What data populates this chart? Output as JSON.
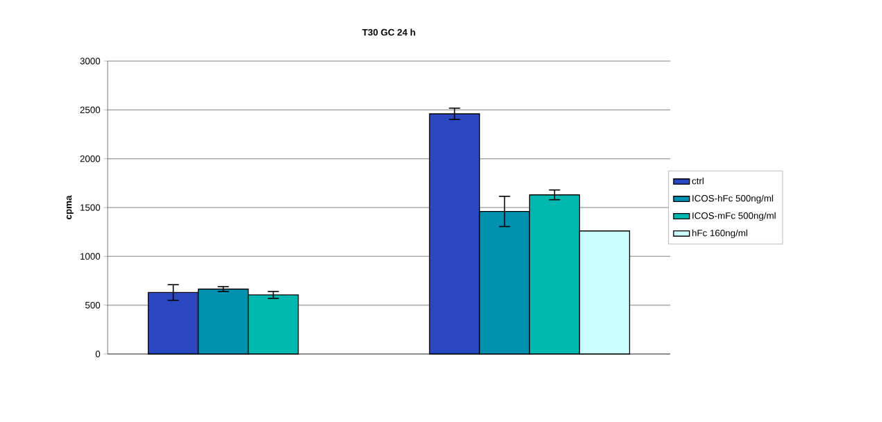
{
  "chart_data": {
    "type": "bar",
    "title": "T30 GC 24 h",
    "ylabel": "cpma",
    "categories": [
      null,
      null
    ],
    "series": [
      {
        "name": "ctrl",
        "color": "#2a48c0",
        "values": [
          630,
          2460
        ],
        "errors": [
          80,
          58
        ]
      },
      {
        "name": "ICOS-hFc 500ng/ml",
        "color": "#0090b0",
        "values": [
          665,
          1460
        ],
        "errors": [
          25,
          155
        ]
      },
      {
        "name": "ICOS-mFc 500ng/ml",
        "color": "#00b8b0",
        "values": [
          605,
          1630
        ],
        "errors": [
          35,
          50
        ]
      },
      {
        "name": "hFc 160ng/ml",
        "color": "#ccffff",
        "values": [
          null,
          1260
        ]
      }
    ],
    "ylim": [
      0,
      3000
    ],
    "yticks": [
      0,
      500,
      1000,
      1500,
      2000,
      2500,
      3000
    ],
    "grid": "y",
    "legend": "right"
  }
}
